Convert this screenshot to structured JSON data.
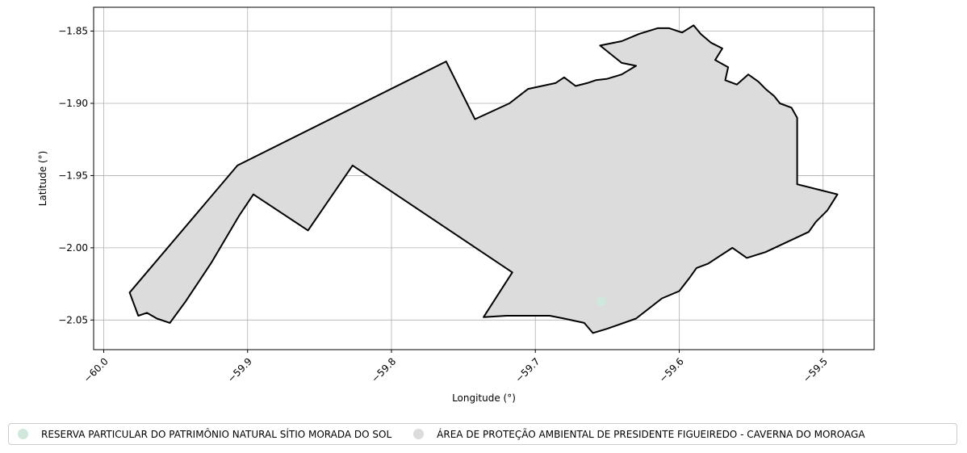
{
  "chart_data": {
    "type": "map",
    "xlabel": "Longitude (°)",
    "ylabel": "Latitude (°)",
    "xlim": [
      -60.007,
      -59.4645
    ],
    "ylim": [
      -2.0705,
      -1.8335
    ],
    "grid": true,
    "legend_placement": "bottom-center",
    "x_ticks": [
      {
        "value": -60.0,
        "label": "−60.0"
      },
      {
        "value": -59.9,
        "label": "−59.9"
      },
      {
        "value": -59.8,
        "label": "−59.8"
      },
      {
        "value": -59.7,
        "label": "−59.7"
      },
      {
        "value": -59.6,
        "label": "−59.6"
      },
      {
        "value": -59.5,
        "label": "−59.5"
      }
    ],
    "y_ticks": [
      {
        "value": -1.85,
        "label": "−1.85"
      },
      {
        "value": -1.9,
        "label": "−1.90"
      },
      {
        "value": -1.95,
        "label": "−1.95"
      },
      {
        "value": -2.0,
        "label": "−2.00"
      },
      {
        "value": -2.05,
        "label": "−2.05"
      }
    ],
    "layers": [
      {
        "name": "ÁREA DE PROTEÇÃO AMBIENTAL DE PRESIDENTE FIGUEIREDO - CAVERNA DO MOROAGA",
        "geometry": "polygon",
        "fill": "#dcdcdc",
        "edge": "#000000",
        "coordinates": [
          [
            -59.982,
            -2.031
          ],
          [
            -59.907,
            -1.943
          ],
          [
            -59.762,
            -1.871
          ],
          [
            -59.742,
            -1.911
          ],
          [
            -59.718,
            -1.9
          ],
          [
            -59.705,
            -1.89
          ],
          [
            -59.686,
            -1.886
          ],
          [
            -59.68,
            -1.882
          ],
          [
            -59.672,
            -1.888
          ],
          [
            -59.664,
            -1.886
          ],
          [
            -59.658,
            -1.884
          ],
          [
            -59.65,
            -1.883
          ],
          [
            -59.64,
            -1.88
          ],
          [
            -59.63,
            -1.874
          ],
          [
            -59.64,
            -1.872
          ],
          [
            -59.655,
            -1.86
          ],
          [
            -59.64,
            -1.857
          ],
          [
            -59.628,
            -1.852
          ],
          [
            -59.615,
            -1.848
          ],
          [
            -59.607,
            -1.848
          ],
          [
            -59.598,
            -1.851
          ],
          [
            -59.59,
            -1.846
          ],
          [
            -59.585,
            -1.852
          ],
          [
            -59.578,
            -1.858
          ],
          [
            -59.57,
            -1.862
          ],
          [
            -59.575,
            -1.87
          ],
          [
            -59.566,
            -1.875
          ],
          [
            -59.568,
            -1.884
          ],
          [
            -59.56,
            -1.887
          ],
          [
            -59.552,
            -1.88
          ],
          [
            -59.545,
            -1.885
          ],
          [
            -59.54,
            -1.89
          ],
          [
            -59.534,
            -1.895
          ],
          [
            -59.53,
            -1.9
          ],
          [
            -59.522,
            -1.903
          ],
          [
            -59.518,
            -1.91
          ],
          [
            -59.518,
            -1.956
          ],
          [
            -59.49,
            -1.963
          ],
          [
            -59.497,
            -1.974
          ],
          [
            -59.505,
            -1.982
          ],
          [
            -59.51,
            -1.989
          ],
          [
            -59.54,
            -2.003
          ],
          [
            -59.553,
            -2.007
          ],
          [
            -59.563,
            -2.0
          ],
          [
            -59.58,
            -2.011
          ],
          [
            -59.588,
            -2.014
          ],
          [
            -59.593,
            -2.021
          ],
          [
            -59.6,
            -2.03
          ],
          [
            -59.612,
            -2.035
          ],
          [
            -59.63,
            -2.049
          ],
          [
            -59.65,
            -2.056
          ],
          [
            -59.66,
            -2.059
          ],
          [
            -59.666,
            -2.052
          ],
          [
            -59.68,
            -2.049
          ],
          [
            -59.69,
            -2.047
          ],
          [
            -59.7,
            -2.047
          ],
          [
            -59.72,
            -2.047
          ],
          [
            -59.736,
            -2.048
          ],
          [
            -59.716,
            -2.017
          ],
          [
            -59.827,
            -1.943
          ],
          [
            -59.858,
            -1.988
          ],
          [
            -59.896,
            -1.963
          ],
          [
            -59.906,
            -1.978
          ],
          [
            -59.925,
            -2.01
          ],
          [
            -59.943,
            -2.037
          ],
          [
            -59.954,
            -2.052
          ],
          [
            -59.963,
            -2.049
          ],
          [
            -59.97,
            -2.045
          ],
          [
            -59.976,
            -2.047
          ]
        ]
      },
      {
        "name": "RESERVA PARTICULAR DO PATRIMÔNIO NATURAL SÍTIO MORADA DO SOL",
        "geometry": "point",
        "color": "#cfe8db",
        "coordinates": [
          -59.654,
          -2.037
        ]
      }
    ]
  },
  "legend": {
    "items": [
      {
        "label": "RESERVA PARTICULAR DO PATRIMÔNIO NATURAL SÍTIO MORADA DO SOL",
        "color": "#cfe8db"
      },
      {
        "label": "ÁREA DE PROTEÇÃO AMBIENTAL DE PRESIDENTE FIGUEIREDO - CAVERNA DO MOROAGA",
        "color": "#dcdcdc"
      }
    ]
  }
}
